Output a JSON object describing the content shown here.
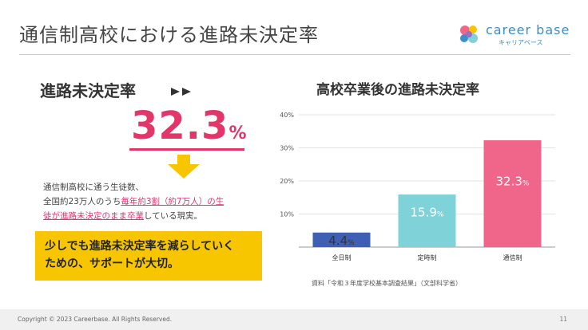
{
  "header": {
    "title": "通信制高校における進路未決定率",
    "logo_text": "career base",
    "logo_sub": "キャリアベース"
  },
  "left": {
    "heading": "進路未決定率",
    "rate_value": "32.3",
    "rate_unit": "%",
    "desc_line1": "通信制高校に通う生徒数、",
    "desc_line2_a": "全国約23万人のうち",
    "desc_line2_b": "毎年約3割（約7万人）の生",
    "desc_line3_a": "徒が進路未決定のまま卒業",
    "desc_line3_b": "している現実。",
    "callout_line1": "少しでも進路未決定率を減らしていく",
    "callout_line2": "ための、サポートが大切。",
    "colors": {
      "accent": "#e2366b",
      "arrow": "#f7c600",
      "callout_bg": "#f7c600"
    }
  },
  "chart_data": {
    "type": "bar",
    "title": "高校卒業後の進路未決定率",
    "categories": [
      "全日制",
      "定時制",
      "通信制"
    ],
    "values": [
      4.4,
      15.9,
      32.3
    ],
    "data_labels": [
      {
        "num": "4.4",
        "unit": "%"
      },
      {
        "num": "15.9",
        "unit": "%"
      },
      {
        "num": "32.3",
        "unit": "%"
      }
    ],
    "colors": [
      "#3f5fb5",
      "#7fd3d8",
      "#f0658a"
    ],
    "label_colors": [
      "#333333",
      "#ffffff",
      "#ffffff"
    ],
    "ylim": [
      0,
      40
    ],
    "yticks": [
      0,
      10,
      20,
      30,
      40
    ],
    "ytick_labels": [
      "",
      "10%",
      "20%",
      "30%",
      "40%"
    ],
    "grid": true,
    "source": "資料「令和３年度学校基本調査結果」（文部科学省）"
  },
  "footer": {
    "copyright": "Copyright © 2023 Careerbase. All Rights Reserved.",
    "page": "11"
  }
}
